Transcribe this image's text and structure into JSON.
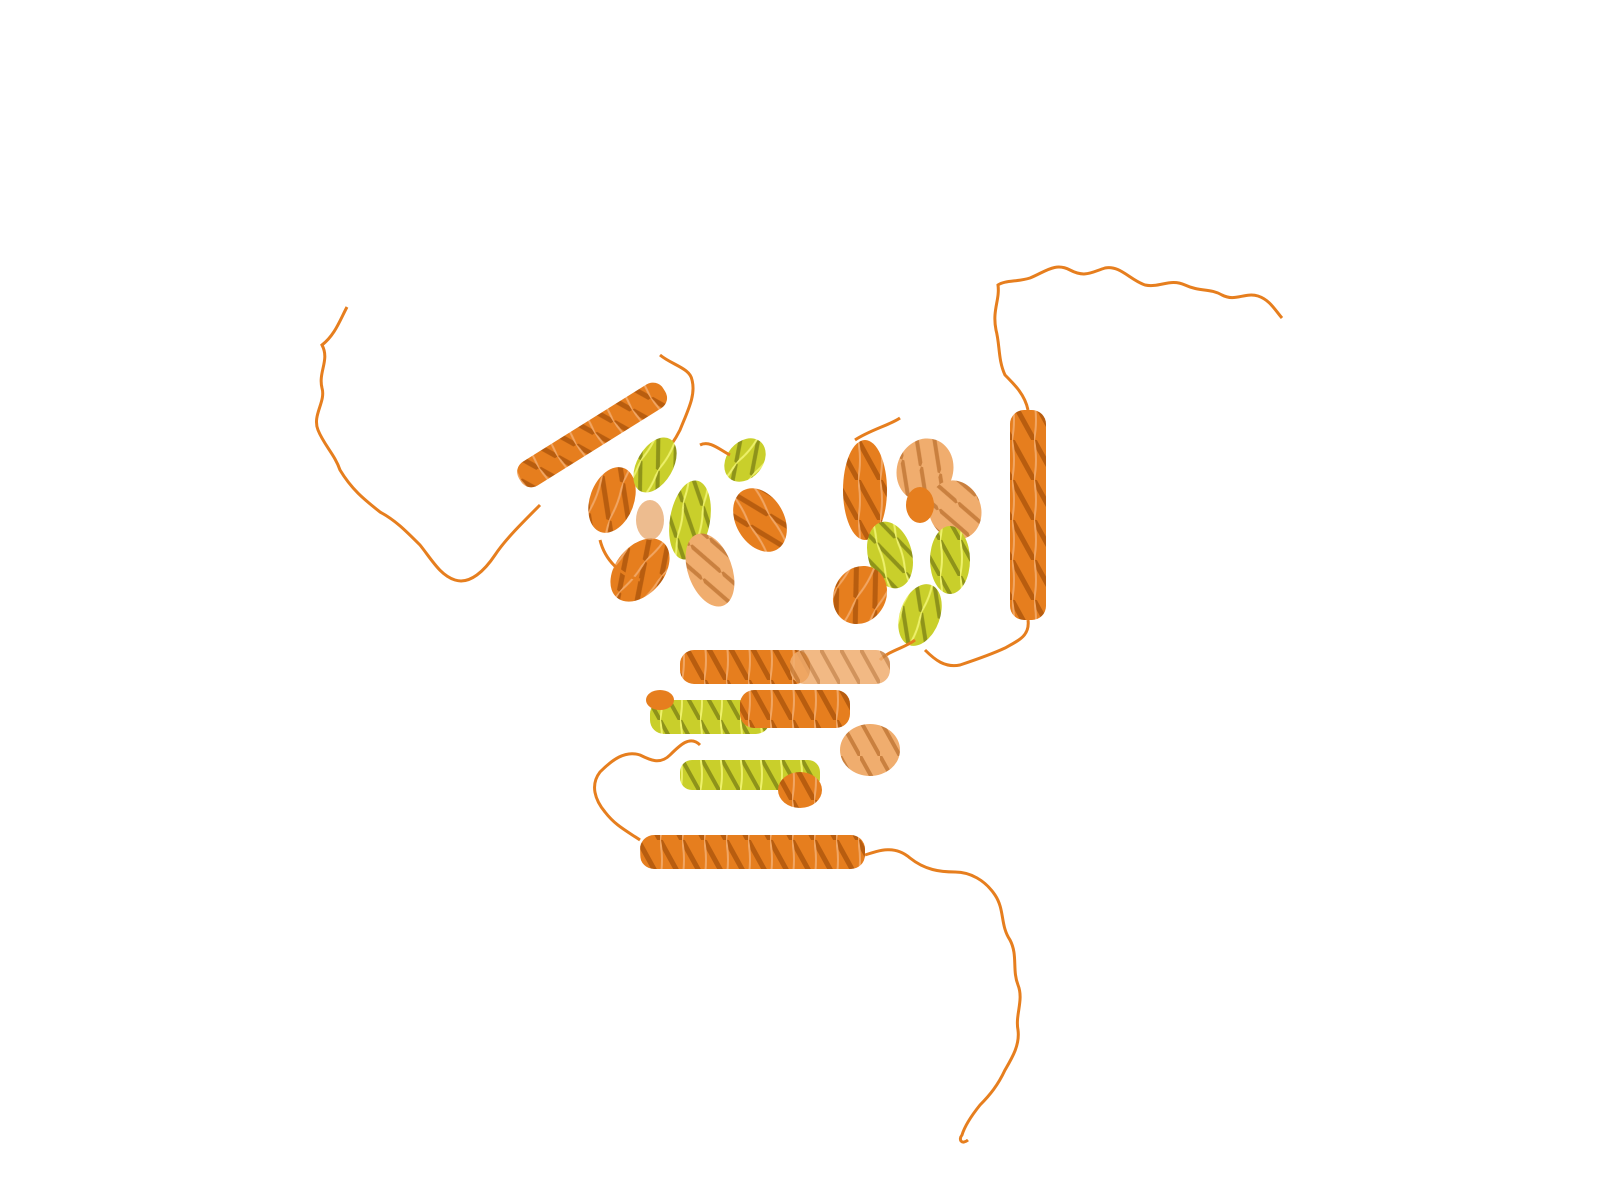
{
  "scene": {
    "background": "#ffffff",
    "colors": {
      "orange": "#e67e1e",
      "orange_dark": "#b85d0f",
      "orange_light": "#f1a562",
      "olive": "#b3b825",
      "olive_light": "#d7dc3e",
      "yellow": "#e8ec2c"
    },
    "subject": "protein-ribbon-cartoon"
  }
}
